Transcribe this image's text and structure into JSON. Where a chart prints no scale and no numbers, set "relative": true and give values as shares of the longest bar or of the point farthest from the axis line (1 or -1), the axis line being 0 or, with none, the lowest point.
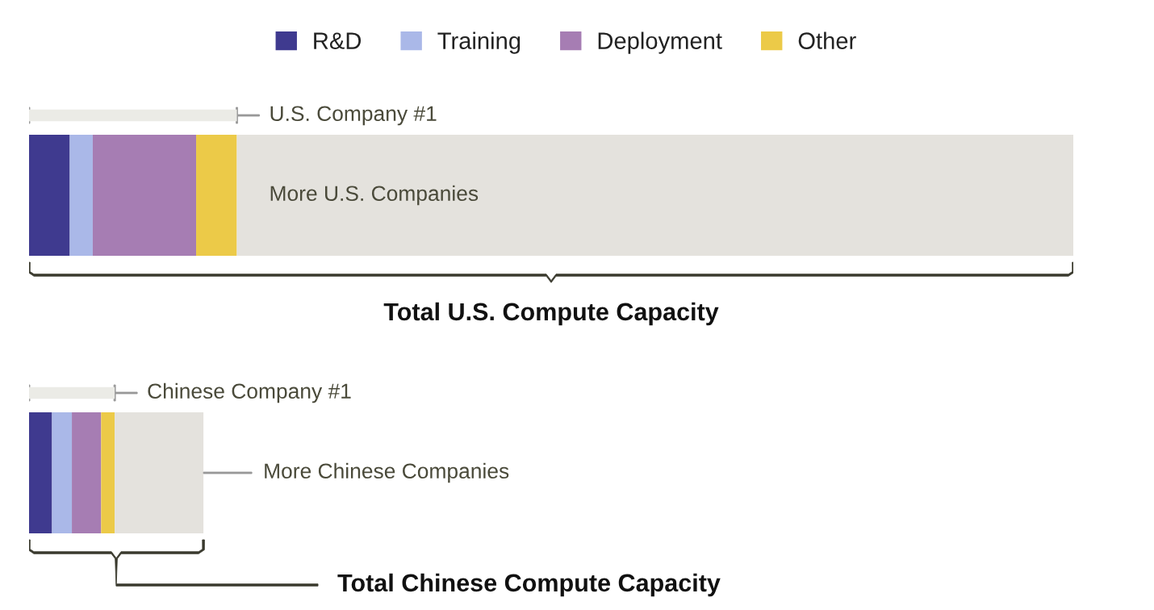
{
  "chart_data": {
    "type": "bar",
    "orientation": "horizontal",
    "stacked": true,
    "relative": true,
    "legend": "top",
    "categories": [
      null,
      null
    ],
    "series": [
      {
        "name": "R&D",
        "color": "#3f3a8f",
        "values": [
          0.039,
          0.022
        ]
      },
      {
        "name": "Training",
        "color": "#aab8e8",
        "values": [
          0.022,
          0.019
        ]
      },
      {
        "name": "Deployment",
        "color": "#a67db3",
        "values": [
          0.099,
          0.028
        ]
      },
      {
        "name": "Other",
        "color": "#ecca48",
        "values": [
          0.039,
          0.013
        ]
      },
      {
        "color": "#e4e2dd",
        "values": [
          0.801,
          0.085
        ]
      }
    ],
    "annotations": [
      "U.S. Company #1",
      "More U.S. Companies",
      "Total U.S. Compute Capacity",
      "Chinese Company #1",
      "More Chinese Companies",
      "Total Chinese Compute Capacity"
    ]
  }
}
